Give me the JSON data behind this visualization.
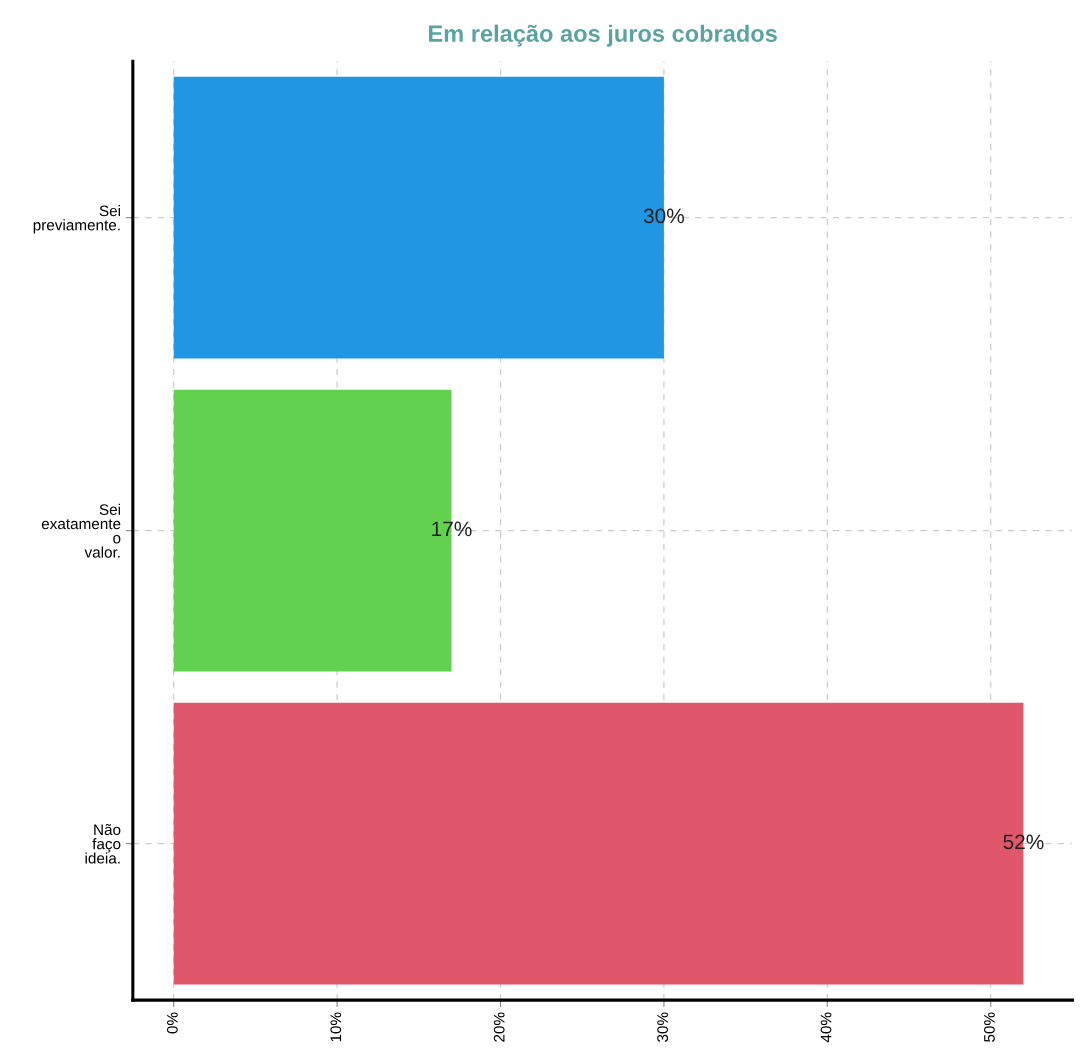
{
  "chart_data": {
    "type": "bar",
    "orientation": "horizontal",
    "title": "Em relação aos juros cobrados",
    "categories": [
      "Sei\npreviamente.",
      "Sei\nexatamente\no\nvalor.",
      "Não\nfaço\nideia."
    ],
    "values": [
      30,
      17,
      52
    ],
    "colors": [
      "#2196e3",
      "#63d150",
      "#e0566a"
    ],
    "value_labels": [
      "30%",
      "17%",
      "52%"
    ],
    "xlim": [
      -2.5,
      55
    ],
    "xticks": [
      {
        "value": 0,
        "label": "0%"
      },
      {
        "value": 10,
        "label": "10%"
      },
      {
        "value": 20,
        "label": "20%"
      },
      {
        "value": 30,
        "label": "30%"
      },
      {
        "value": 40,
        "label": "40%"
      },
      {
        "value": 50,
        "label": "50%"
      }
    ],
    "grid": true
  }
}
